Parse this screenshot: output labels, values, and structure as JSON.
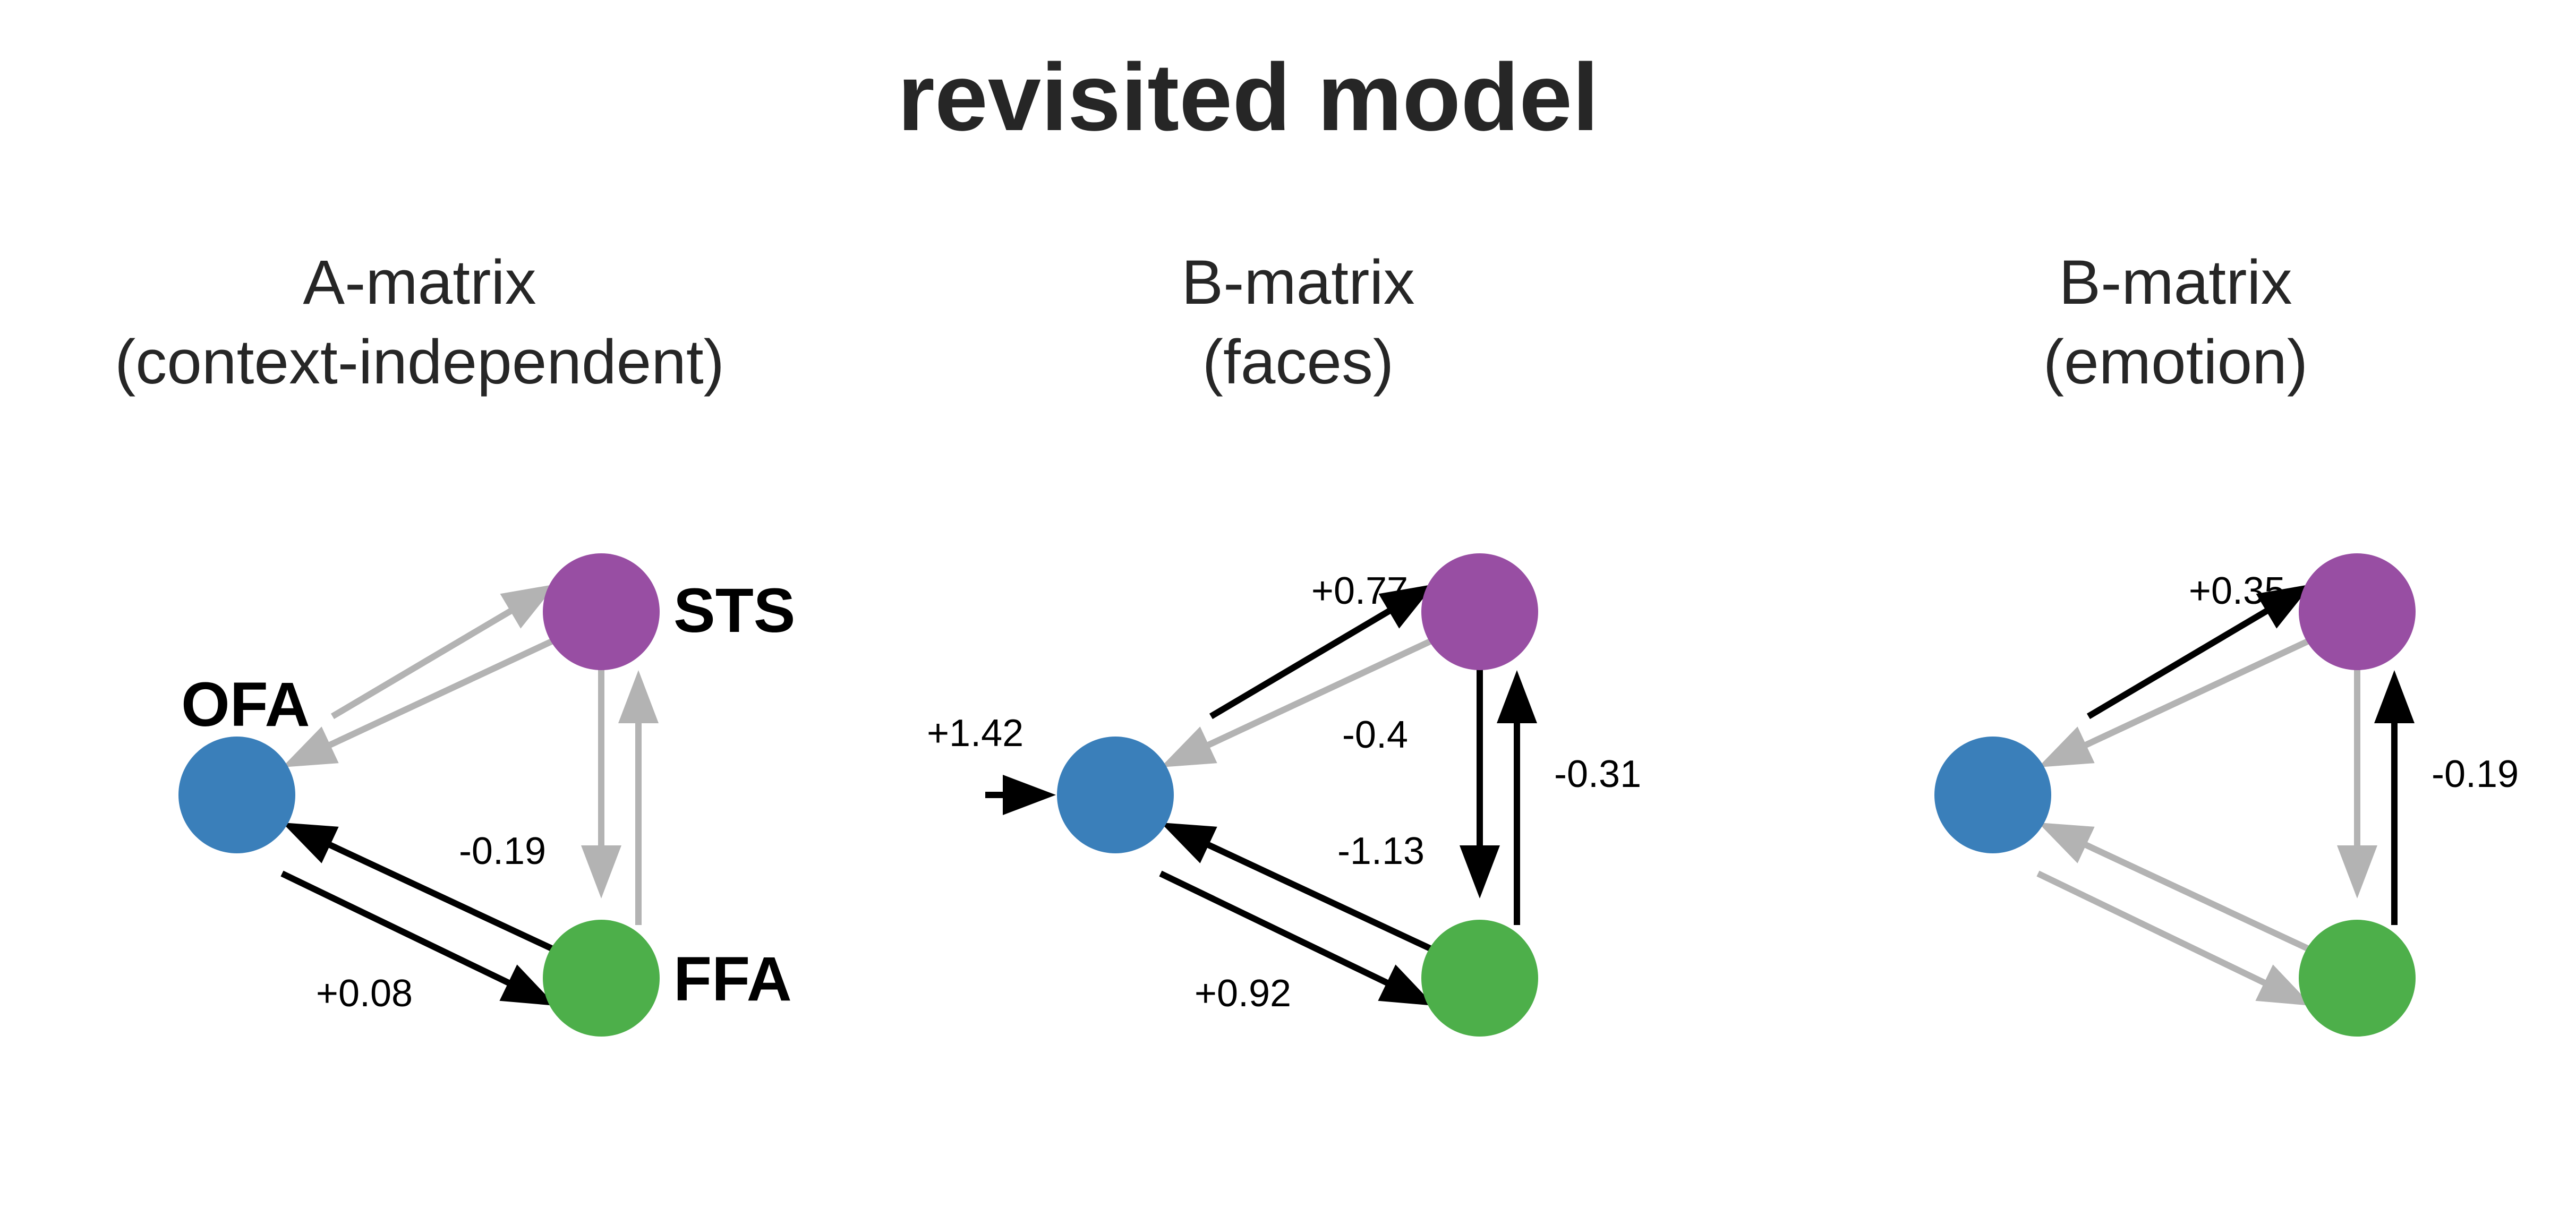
{
  "title": "revisited model",
  "colors": {
    "OFA": "#3a7fba",
    "STS": "#984ea3",
    "FFA": "#4daf4a",
    "significant_edge": "#000000",
    "nonsignificant_edge": "#b3b3b3"
  },
  "nodes": {
    "OFA": "OFA",
    "STS": "STS",
    "FFA": "FFA"
  },
  "panels": [
    {
      "title_line1": "A-matrix",
      "title_line2": "(context-independent)",
      "show_node_labels": true,
      "input_label": "",
      "edges": [
        {
          "from": "OFA",
          "to": "STS",
          "significant": false,
          "label": ""
        },
        {
          "from": "STS",
          "to": "OFA",
          "significant": false,
          "label": ""
        },
        {
          "from": "STS",
          "to": "FFA",
          "significant": false,
          "label": ""
        },
        {
          "from": "FFA",
          "to": "STS",
          "significant": false,
          "label": ""
        },
        {
          "from": "FFA",
          "to": "OFA",
          "significant": true,
          "label": "-0.19"
        },
        {
          "from": "OFA",
          "to": "FFA",
          "significant": true,
          "label": "+0.08"
        }
      ]
    },
    {
      "title_line1": "B-matrix",
      "title_line2": "(faces)",
      "show_node_labels": false,
      "input_label": "+1.42",
      "edges": [
        {
          "from": "OFA",
          "to": "STS",
          "significant": true,
          "label": "+0.77"
        },
        {
          "from": "STS",
          "to": "OFA",
          "significant": false,
          "label": ""
        },
        {
          "from": "STS",
          "to": "FFA",
          "significant": true,
          "label": "-0.4"
        },
        {
          "from": "FFA",
          "to": "STS",
          "significant": true,
          "label": "-0.31"
        },
        {
          "from": "FFA",
          "to": "OFA",
          "significant": true,
          "label": "-1.13"
        },
        {
          "from": "OFA",
          "to": "FFA",
          "significant": true,
          "label": "+0.92"
        }
      ]
    },
    {
      "title_line1": "B-matrix",
      "title_line2": "(emotion)",
      "show_node_labels": false,
      "input_label": "",
      "edges": [
        {
          "from": "OFA",
          "to": "STS",
          "significant": true,
          "label": "+0.35"
        },
        {
          "from": "STS",
          "to": "OFA",
          "significant": false,
          "label": ""
        },
        {
          "from": "STS",
          "to": "FFA",
          "significant": false,
          "label": ""
        },
        {
          "from": "FFA",
          "to": "STS",
          "significant": true,
          "label": "-0.19"
        },
        {
          "from": "FFA",
          "to": "OFA",
          "significant": false,
          "label": ""
        },
        {
          "from": "OFA",
          "to": "FFA",
          "significant": false,
          "label": ""
        }
      ]
    }
  ]
}
